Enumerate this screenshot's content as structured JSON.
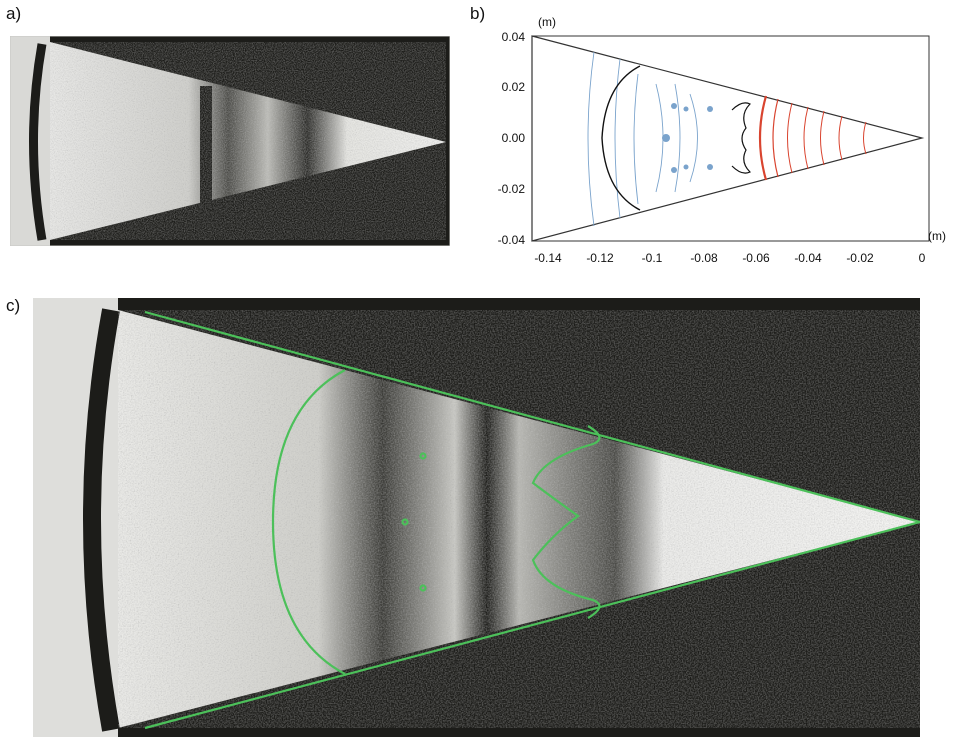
{
  "panels": {
    "a": {
      "label": "a)"
    },
    "b": {
      "label": "b)",
      "y_unit": "(m)",
      "x_unit": "(m)",
      "y_ticks": [
        "0.04",
        "0.02",
        "0.00",
        "-0.02",
        "-0.04"
      ],
      "x_ticks": [
        "-0.14",
        "-0.12",
        "-0.1",
        "-0.08",
        "-0.06",
        "-0.04",
        "-0.02",
        "0"
      ]
    },
    "c": {
      "label": "c)"
    }
  },
  "colors": {
    "background_dark": "#1c1c19",
    "overlay_green": "#4cc05a",
    "contour_blue": "#7aa3cc",
    "contour_red": "#d9442f"
  }
}
